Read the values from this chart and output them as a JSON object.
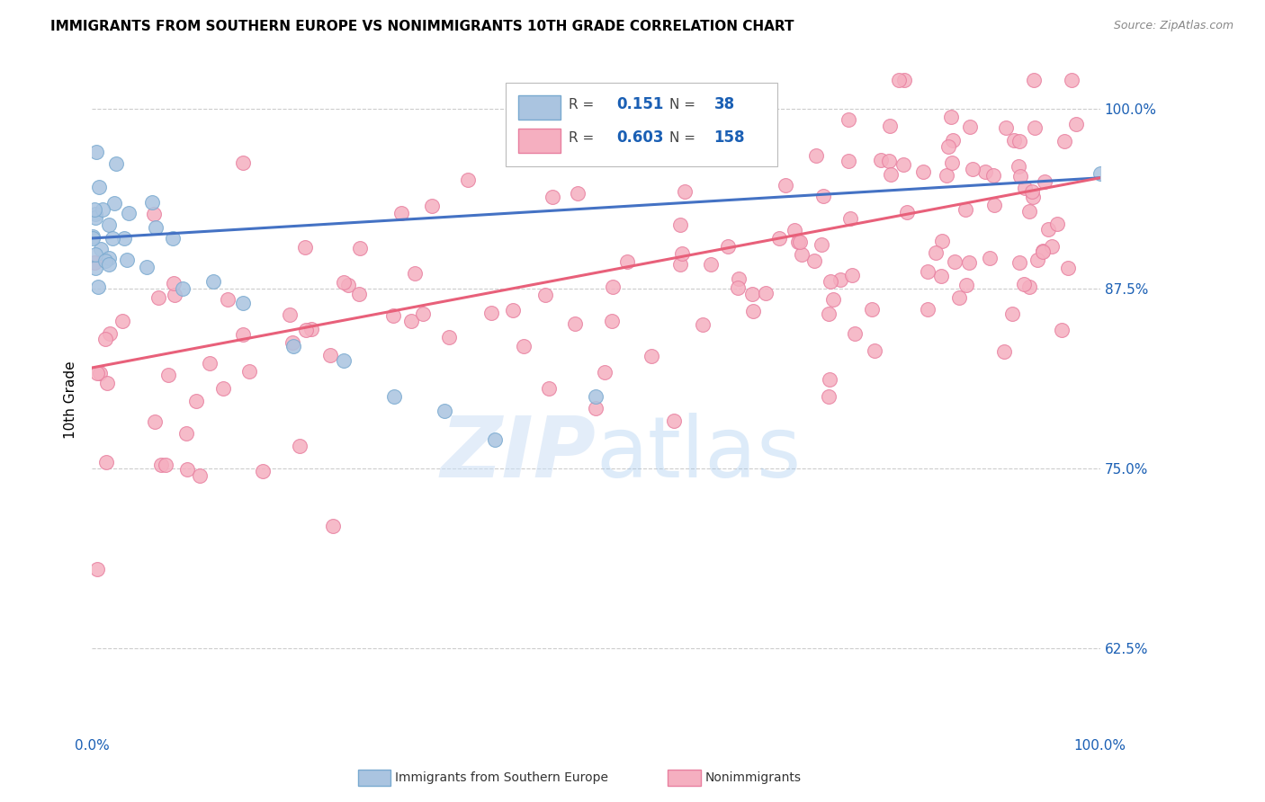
{
  "title": "IMMIGRANTS FROM SOUTHERN EUROPE VS NONIMMIGRANTS 10TH GRADE CORRELATION CHART",
  "source": "Source: ZipAtlas.com",
  "ylabel": "10th Grade",
  "x_min": 0.0,
  "x_max": 1.0,
  "y_min": 0.565,
  "y_max": 1.03,
  "y_ticks": [
    0.625,
    0.75,
    0.875,
    1.0
  ],
  "y_tick_labels": [
    "62.5%",
    "75.0%",
    "87.5%",
    "100.0%"
  ],
  "grid_color": "#cccccc",
  "background_color": "#ffffff",
  "series1_color": "#aac4e0",
  "series1_edge_color": "#7aaad0",
  "series2_color": "#f5afc0",
  "series2_edge_color": "#e880a0",
  "trend1_color": "#4472c4",
  "trend2_color": "#e8607a",
  "R1": 0.151,
  "N1": 38,
  "R2": 0.603,
  "N2": 158,
  "legend_R_color": "#333333",
  "legend_val_color": "#1a5fb4",
  "series1_label": "Immigrants from Southern Europe",
  "series2_label": "Nonimmigrants",
  "blue_trend_x": [
    0.0,
    1.0
  ],
  "blue_trend_y": [
    0.91,
    0.952
  ],
  "pink_trend_x": [
    0.0,
    1.0
  ],
  "pink_trend_y": [
    0.82,
    0.952
  ]
}
